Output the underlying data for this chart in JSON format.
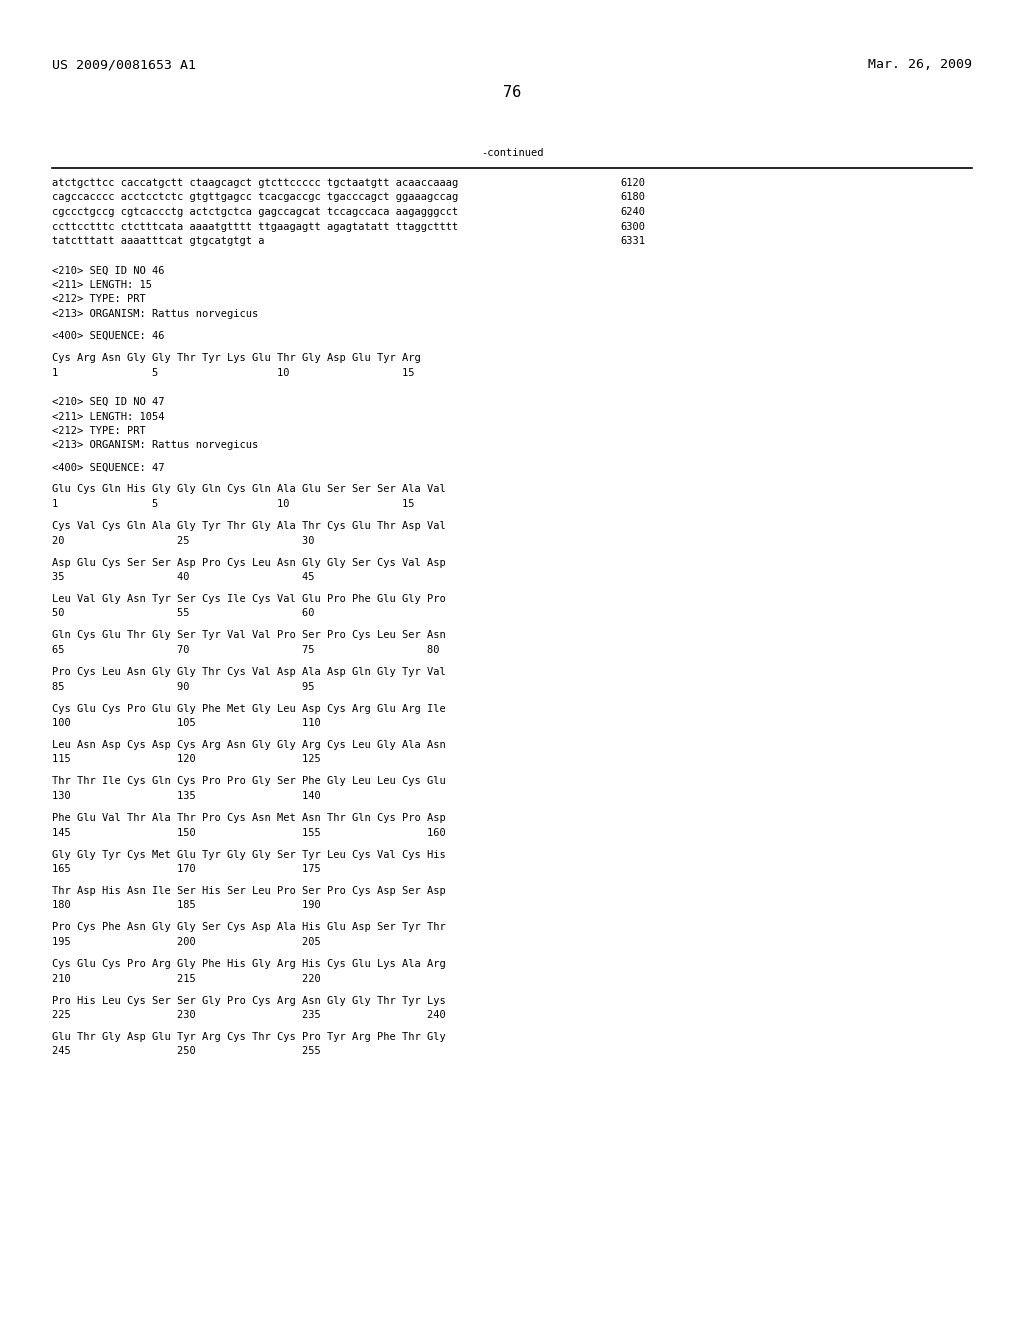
{
  "header_left": "US 2009/0081653 A1",
  "header_right": "Mar. 26, 2009",
  "page_number": "76",
  "continued_label": "-continued",
  "background_color": "#ffffff",
  "text_color": "#000000",
  "font_size": 7.5,
  "header_font_size": 9.5,
  "page_num_font_size": 11,
  "lines": [
    {
      "text": "atctgcttcc caccatgctt ctaagcagct gtcttccccc tgctaatgtt acaaccaaag",
      "num": "6120",
      "type": "seq"
    },
    {
      "text": "cagccacccc acctcctctc gtgttgagcc tcacgaccgc tgacccagct ggaaagccag",
      "num": "6180",
      "type": "seq"
    },
    {
      "text": "cgccctgccg cgtcaccctg actctgctca gagccagcat tccagccaca aagagggcct",
      "num": "6240",
      "type": "seq"
    },
    {
      "text": "ccttcctttc ctctttcata aaaatgtttt ttgaagagtt agagtatatt ttaggctttt",
      "num": "6300",
      "type": "seq"
    },
    {
      "text": "tatctttatt aaaatttcat gtgcatgtgt a",
      "num": "6331",
      "type": "seq"
    },
    {
      "text": "",
      "num": "",
      "type": "blank"
    },
    {
      "text": "",
      "num": "",
      "type": "blank"
    },
    {
      "text": "<210> SEQ ID NO 46",
      "num": "",
      "type": "meta"
    },
    {
      "text": "<211> LENGTH: 15",
      "num": "",
      "type": "meta"
    },
    {
      "text": "<212> TYPE: PRT",
      "num": "",
      "type": "meta"
    },
    {
      "text": "<213> ORGANISM: Rattus norvegicus",
      "num": "",
      "type": "meta"
    },
    {
      "text": "",
      "num": "",
      "type": "blank"
    },
    {
      "text": "<400> SEQUENCE: 46",
      "num": "",
      "type": "meta"
    },
    {
      "text": "",
      "num": "",
      "type": "blank"
    },
    {
      "text": "Cys Arg Asn Gly Gly Thr Tyr Lys Glu Thr Gly Asp Glu Tyr Arg",
      "num": "",
      "type": "aa"
    },
    {
      "text": "1               5                   10                  15",
      "num": "",
      "type": "num"
    },
    {
      "text": "",
      "num": "",
      "type": "blank"
    },
    {
      "text": "",
      "num": "",
      "type": "blank"
    },
    {
      "text": "<210> SEQ ID NO 47",
      "num": "",
      "type": "meta"
    },
    {
      "text": "<211> LENGTH: 1054",
      "num": "",
      "type": "meta"
    },
    {
      "text": "<212> TYPE: PRT",
      "num": "",
      "type": "meta"
    },
    {
      "text": "<213> ORGANISM: Rattus norvegicus",
      "num": "",
      "type": "meta"
    },
    {
      "text": "",
      "num": "",
      "type": "blank"
    },
    {
      "text": "<400> SEQUENCE: 47",
      "num": "",
      "type": "meta"
    },
    {
      "text": "",
      "num": "",
      "type": "blank"
    },
    {
      "text": "Glu Cys Gln His Gly Gly Gln Cys Gln Ala Glu Ser Ser Ser Ala Val",
      "num": "",
      "type": "aa"
    },
    {
      "text": "1               5                   10                  15",
      "num": "",
      "type": "num"
    },
    {
      "text": "",
      "num": "",
      "type": "blank"
    },
    {
      "text": "Cys Val Cys Gln Ala Gly Tyr Thr Gly Ala Thr Cys Glu Thr Asp Val",
      "num": "",
      "type": "aa"
    },
    {
      "text": "20                  25                  30",
      "num": "",
      "type": "num"
    },
    {
      "text": "",
      "num": "",
      "type": "blank"
    },
    {
      "text": "Asp Glu Cys Ser Ser Asp Pro Cys Leu Asn Gly Gly Ser Cys Val Asp",
      "num": "",
      "type": "aa"
    },
    {
      "text": "35                  40                  45",
      "num": "",
      "type": "num"
    },
    {
      "text": "",
      "num": "",
      "type": "blank"
    },
    {
      "text": "Leu Val Gly Asn Tyr Ser Cys Ile Cys Val Glu Pro Phe Glu Gly Pro",
      "num": "",
      "type": "aa"
    },
    {
      "text": "50                  55                  60",
      "num": "",
      "type": "num"
    },
    {
      "text": "",
      "num": "",
      "type": "blank"
    },
    {
      "text": "Gln Cys Glu Thr Gly Ser Tyr Val Val Pro Ser Pro Cys Leu Ser Asn",
      "num": "",
      "type": "aa"
    },
    {
      "text": "65                  70                  75                  80",
      "num": "",
      "type": "num"
    },
    {
      "text": "",
      "num": "",
      "type": "blank"
    },
    {
      "text": "Pro Cys Leu Asn Gly Gly Thr Cys Val Asp Ala Asp Gln Gly Tyr Val",
      "num": "",
      "type": "aa"
    },
    {
      "text": "85                  90                  95",
      "num": "",
      "type": "num"
    },
    {
      "text": "",
      "num": "",
      "type": "blank"
    },
    {
      "text": "Cys Glu Cys Pro Glu Gly Phe Met Gly Leu Asp Cys Arg Glu Arg Ile",
      "num": "",
      "type": "aa"
    },
    {
      "text": "100                 105                 110",
      "num": "",
      "type": "num"
    },
    {
      "text": "",
      "num": "",
      "type": "blank"
    },
    {
      "text": "Leu Asn Asp Cys Asp Cys Arg Asn Gly Gly Arg Cys Leu Gly Ala Asn",
      "num": "",
      "type": "aa"
    },
    {
      "text": "115                 120                 125",
      "num": "",
      "type": "num"
    },
    {
      "text": "",
      "num": "",
      "type": "blank"
    },
    {
      "text": "Thr Thr Ile Cys Gln Cys Pro Pro Gly Ser Phe Gly Leu Leu Cys Glu",
      "num": "",
      "type": "aa"
    },
    {
      "text": "130                 135                 140",
      "num": "",
      "type": "num"
    },
    {
      "text": "",
      "num": "",
      "type": "blank"
    },
    {
      "text": "Phe Glu Val Thr Ala Thr Pro Cys Asn Met Asn Thr Gln Cys Pro Asp",
      "num": "",
      "type": "aa"
    },
    {
      "text": "145                 150                 155                 160",
      "num": "",
      "type": "num"
    },
    {
      "text": "",
      "num": "",
      "type": "blank"
    },
    {
      "text": "Gly Gly Tyr Cys Met Glu Tyr Gly Gly Ser Tyr Leu Cys Val Cys His",
      "num": "",
      "type": "aa"
    },
    {
      "text": "165                 170                 175",
      "num": "",
      "type": "num"
    },
    {
      "text": "",
      "num": "",
      "type": "blank"
    },
    {
      "text": "Thr Asp His Asn Ile Ser His Ser Leu Pro Ser Pro Cys Asp Ser Asp",
      "num": "",
      "type": "aa"
    },
    {
      "text": "180                 185                 190",
      "num": "",
      "type": "num"
    },
    {
      "text": "",
      "num": "",
      "type": "blank"
    },
    {
      "text": "Pro Cys Phe Asn Gly Gly Ser Cys Asp Ala His Glu Asp Ser Tyr Thr",
      "num": "",
      "type": "aa"
    },
    {
      "text": "195                 200                 205",
      "num": "",
      "type": "num"
    },
    {
      "text": "",
      "num": "",
      "type": "blank"
    },
    {
      "text": "Cys Glu Cys Pro Arg Gly Phe His Gly Arg His Cys Glu Lys Ala Arg",
      "num": "",
      "type": "aa"
    },
    {
      "text": "210                 215                 220",
      "num": "",
      "type": "num"
    },
    {
      "text": "",
      "num": "",
      "type": "blank"
    },
    {
      "text": "Pro His Leu Cys Ser Ser Gly Pro Cys Arg Asn Gly Gly Thr Tyr Lys",
      "num": "",
      "type": "aa"
    },
    {
      "text": "225                 230                 235                 240",
      "num": "",
      "type": "num"
    },
    {
      "text": "",
      "num": "",
      "type": "blank"
    },
    {
      "text": "Glu Thr Gly Asp Glu Tyr Arg Cys Thr Cys Pro Tyr Arg Phe Thr Gly",
      "num": "",
      "type": "aa"
    },
    {
      "text": "245                 250                 255",
      "num": "",
      "type": "num"
    }
  ]
}
